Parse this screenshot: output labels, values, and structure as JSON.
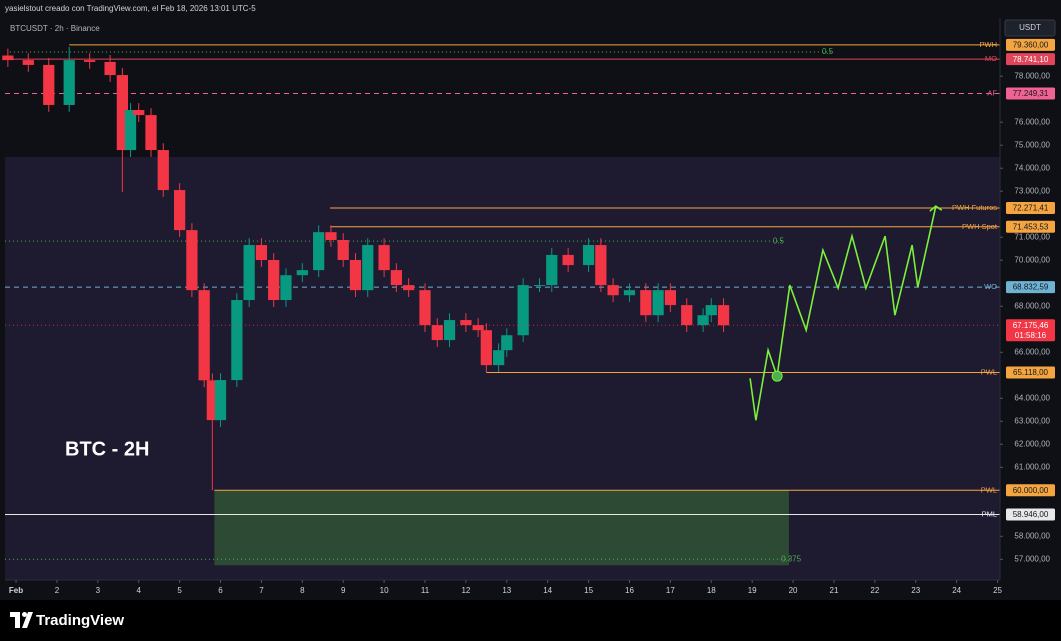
{
  "chart_data": {
    "type": "candlestick",
    "header": "yasielstout creado con TradingView.com, el Feb 18, 2026 13:01 UTC-5",
    "title": "BTCUSDT · 2h · Binance",
    "currency": "USDT",
    "annotation": "BTC - 2H",
    "brand": "TradingView",
    "xlim": [
      0.73,
      25.06
    ],
    "ylim": [
      56100,
      80530
    ],
    "xticks": [
      {
        "value": 1,
        "label": "Feb"
      },
      2,
      3,
      4,
      5,
      6,
      7,
      8,
      9,
      10,
      11,
      12,
      13,
      14,
      15,
      16,
      17,
      18,
      19,
      20,
      21,
      22,
      23,
      24,
      25
    ],
    "yticks": [
      {
        "value": 57000,
        "label": "57.000,00"
      },
      {
        "value": 58000,
        "label": "58.000,00"
      },
      {
        "value": 61000,
        "label": "61.000,00"
      },
      {
        "value": 62000,
        "label": "62.000,00"
      },
      {
        "value": 63000,
        "label": "63.000,00"
      },
      {
        "value": 64000,
        "label": "64.000,00"
      },
      {
        "value": 66000,
        "label": "66.000,00"
      },
      {
        "value": 68000,
        "label": "68.000,00"
      },
      {
        "value": 70000,
        "label": "70.000,00"
      },
      {
        "value": 71000,
        "label": "71.000,00"
      },
      {
        "value": 73000,
        "label": "73.000,00"
      },
      {
        "value": 74000,
        "label": "74.000,00"
      },
      {
        "value": 75000,
        "label": "75.000,00"
      },
      {
        "value": 76000,
        "label": "76.000,00"
      },
      {
        "value": 78000,
        "label": "78.000,00"
      }
    ],
    "up_color": "#089981",
    "down_color": "#f23645",
    "candles": {
      "x": [
        0.8,
        1.3,
        1.8,
        2.3,
        2.8,
        3.3,
        3.6,
        3.8,
        4.0,
        4.3,
        4.6,
        5.0,
        5.3,
        5.6,
        5.8,
        6.0,
        6.4,
        6.7,
        7.0,
        7.3,
        7.6,
        8.0,
        8.4,
        8.7,
        9.0,
        9.3,
        9.6,
        10.0,
        10.3,
        10.6,
        11.0,
        11.3,
        11.6,
        12.0,
        12.3,
        12.5,
        12.8,
        13.0,
        13.4,
        13.8,
        14.1,
        14.5,
        15.0,
        15.3,
        15.6,
        16.0,
        16.4,
        16.7,
        17.0,
        17.4,
        17.8,
        18.0,
        18.3
      ],
      "open": [
        78900,
        78700,
        78490,
        76750,
        78700,
        78620,
        78050,
        74790,
        76530,
        76310,
        74790,
        73050,
        71310,
        68700,
        64780,
        63050,
        64790,
        68270,
        70660,
        70010,
        68270,
        69350,
        69570,
        71220,
        70880,
        70010,
        68700,
        70660,
        69570,
        68920,
        68700,
        67180,
        66530,
        67400,
        67180,
        66960,
        65440,
        66090,
        66740,
        68920,
        68920,
        70230,
        69790,
        70660,
        68920,
        68480,
        68700,
        67610,
        68700,
        68050,
        67180,
        67610,
        68050
      ],
      "high": [
        79200,
        79000,
        78790,
        79270,
        79000,
        78920,
        78350,
        76830,
        76830,
        76610,
        75090,
        73350,
        71610,
        69000,
        65080,
        65090,
        68570,
        70960,
        70960,
        70310,
        69650,
        69870,
        71520,
        71520,
        71180,
        70310,
        70960,
        70960,
        69870,
        69220,
        69000,
        67480,
        67700,
        67700,
        67480,
        67260,
        66390,
        67040,
        69220,
        69220,
        70530,
        70530,
        70960,
        70960,
        69220,
        69000,
        69000,
        69000,
        69000,
        68350,
        67910,
        68350,
        68350
      ],
      "low": [
        78400,
        78190,
        76450,
        76450,
        78320,
        77750,
        72960,
        74490,
        76010,
        74490,
        72750,
        71010,
        68400,
        64480,
        60000,
        62750,
        64490,
        67970,
        69710,
        67970,
        67970,
        69050,
        69270,
        70580,
        69710,
        68400,
        68400,
        69270,
        68620,
        68400,
        66880,
        66230,
        66230,
        66880,
        66660,
        65140,
        65140,
        65790,
        66440,
        68620,
        68620,
        69490,
        69490,
        68620,
        68180,
        68180,
        67310,
        67310,
        67750,
        66880,
        66880,
        67310,
        66875
      ],
      "close": [
        78700,
        78490,
        76750,
        78700,
        78620,
        78050,
        74790,
        76530,
        76310,
        74790,
        73050,
        71310,
        68700,
        64780,
        63050,
        64790,
        68270,
        70660,
        70010,
        68270,
        69350,
        69570,
        71220,
        70880,
        70010,
        68700,
        70660,
        69570,
        68920,
        68700,
        67180,
        66530,
        67400,
        67180,
        66960,
        65440,
        66090,
        66740,
        68920,
        68920,
        70230,
        69790,
        70660,
        68920,
        68480,
        68700,
        67610,
        68700,
        68050,
        67180,
        67610,
        68050,
        67175
      ]
    },
    "zones": [
      {
        "from": 0.73,
        "to": 25.06,
        "top": 74490,
        "bottom": 56100,
        "color": "#1e1a30"
      },
      {
        "from": 5.85,
        "to": 19.9,
        "top": 60000,
        "bottom": 56740,
        "color": "#2c4a34"
      }
    ],
    "fib_levels": [
      {
        "label": "0.5",
        "value": 79050,
        "from": 0.85,
        "to": 21.0
      },
      {
        "label": "0.5",
        "value": 70830,
        "from": 0.73,
        "to": 19.8
      },
      {
        "label": "0.375",
        "value": 57000,
        "from": 0.73,
        "to": 20.0
      }
    ],
    "levels": [
      {
        "name": "PWH",
        "value": 79360,
        "value_label": "79.360,00",
        "color": "#f5a540",
        "text_color": "#131722",
        "dash": "solid",
        "from": 2.3
      },
      {
        "name": "MO",
        "value": 78741.1,
        "value_label": "78.741,10",
        "color": "#e0455a",
        "text_color": "#ffffff",
        "dash": "solid",
        "from": 0.73
      },
      {
        "name": "AF",
        "value": 77249.31,
        "value_label": "77.249,31",
        "color": "#f06292",
        "text_color": "#131722",
        "dash": "dashed",
        "from": 0.73
      },
      {
        "name": "PWH Futuros",
        "value": 72271.41,
        "value_label": "72.271,41",
        "color": "#f5a540",
        "text_color": "#131722",
        "dash": "solid",
        "from": 8.68
      },
      {
        "name": "PWH Spot",
        "value": 71453.53,
        "value_label": "71.453,53",
        "color": "#f5a540",
        "text_color": "#131722",
        "dash": "solid",
        "from": 8.68
      },
      {
        "name": "WO",
        "value": 68832.59,
        "value_label": "68.832,59",
        "color": "#6fb3d2",
        "text_color": "#131722",
        "dash": "dashed",
        "from": 0.73
      },
      {
        "name": "PWL",
        "value": 65118,
        "value_label": "65.118,00",
        "color": "#f5a540",
        "text_color": "#131722",
        "dash": "solid",
        "from": 12.5
      },
      {
        "name": "PWL",
        "value": 60000,
        "value_label": "60.000,00",
        "color": "#f5a540",
        "text_color": "#131722",
        "dash": "solid",
        "from": 5.85
      },
      {
        "name": "PML",
        "value": 58946,
        "value_label": "58.946,00",
        "color": "#e8e8e8",
        "text_color": "#131722",
        "dash": "solid",
        "from": 0.73
      }
    ],
    "current": {
      "value": 67175.46,
      "value_label": "67.175,46",
      "countdown": "01:58:16",
      "color": "#f23645"
    },
    "projection": {
      "color": "#7cf03a",
      "x": [
        18.95,
        19.09,
        19.39,
        19.61,
        19.92,
        20.32,
        20.73,
        21.1,
        21.44,
        21.78,
        22.25,
        22.49,
        22.91,
        23.05,
        23.49
      ],
      "values": [
        64870,
        63040,
        66090,
        64960,
        68920,
        66960,
        70440,
        68790,
        71050,
        68790,
        71050,
        67610,
        70660,
        68830,
        72350
      ],
      "marker_index": 3
    }
  }
}
